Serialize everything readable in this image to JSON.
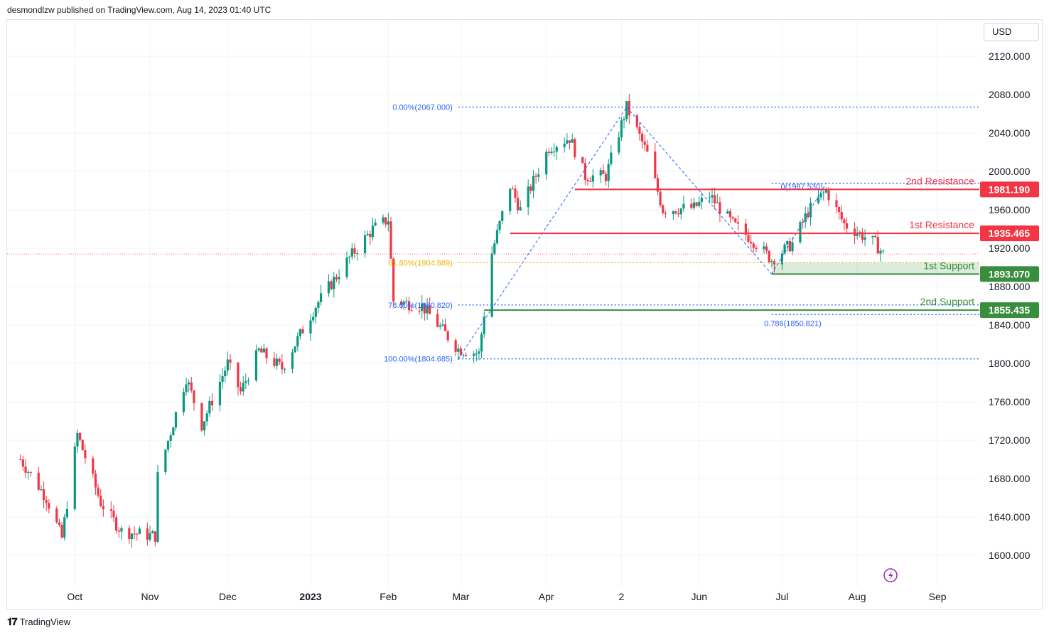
{
  "header": {
    "text": "desmondlzw published on TradingView.com, Aug 14, 2023 01:40 UTC"
  },
  "currency": "USD",
  "footer": {
    "brand": "TradingView"
  },
  "colors": {
    "up": "#089981",
    "down": "#f23645",
    "resistance": "#f23645",
    "support": "#388e3c",
    "fib": "#2962ff",
    "fib_gold": "#f0b400",
    "grid": "#f0f3fa"
  },
  "chart_data": {
    "type": "candlestick",
    "title": "",
    "ylim": [
      1584,
      2140
    ],
    "y_ticks": [
      "2120.000",
      "2080.000",
      "2040.000",
      "2000.000",
      "1960.000",
      "1920.000",
      "1880.000",
      "1840.000",
      "1800.000",
      "1760.000",
      "1720.000",
      "1680.000",
      "1640.000",
      "1600.000"
    ],
    "x_ticks": [
      {
        "label": "Oct",
        "date": "2022-10-03",
        "bold": false
      },
      {
        "label": "Nov",
        "date": "2022-11-01",
        "bold": false
      },
      {
        "label": "Dec",
        "date": "2022-12-01",
        "bold": false
      },
      {
        "label": "2023",
        "date": "2023-01-02",
        "bold": true
      },
      {
        "label": "Feb",
        "date": "2023-02-01",
        "bold": false
      },
      {
        "label": "Mar",
        "date": "2023-03-01",
        "bold": false
      },
      {
        "label": "Apr",
        "date": "2023-04-03",
        "bold": false
      },
      {
        "label": "2",
        "date": "2023-05-02",
        "bold": false
      },
      {
        "label": "Jun",
        "date": "2023-06-01",
        "bold": false
      },
      {
        "label": "Jul",
        "date": "2023-07-03",
        "bold": false
      },
      {
        "label": "Aug",
        "date": "2023-08-01",
        "bold": false
      },
      {
        "label": "Sep",
        "date": "2023-09-01",
        "bold": false
      }
    ],
    "price_path": [
      [
        "2022-09-12",
        1700
      ],
      [
        "2022-09-22",
        1660
      ],
      [
        "2022-09-28",
        1618
      ],
      [
        "2022-10-04",
        1726
      ],
      [
        "2022-10-13",
        1655
      ],
      [
        "2022-10-21",
        1625
      ],
      [
        "2022-11-03",
        1620
      ],
      [
        "2022-11-04",
        1682
      ],
      [
        "2022-11-15",
        1785
      ],
      [
        "2022-11-21",
        1736
      ],
      [
        "2022-12-01",
        1800
      ],
      [
        "2022-12-06",
        1770
      ],
      [
        "2022-12-13",
        1813
      ],
      [
        "2022-12-22",
        1795
      ],
      [
        "2023-01-04",
        1860
      ],
      [
        "2023-01-17",
        1910
      ],
      [
        "2023-01-26",
        1940
      ],
      [
        "2023-02-01",
        1950
      ],
      [
        "2023-02-03",
        1865
      ],
      [
        "2023-02-14",
        1860
      ],
      [
        "2023-02-28",
        1815
      ],
      [
        "2023-03-08",
        1810
      ],
      [
        "2023-03-13",
        1915
      ],
      [
        "2023-03-20",
        1985
      ],
      [
        "2023-03-24",
        1960
      ],
      [
        "2023-04-04",
        2025
      ],
      [
        "2023-04-12",
        2035
      ],
      [
        "2023-04-18",
        1995
      ],
      [
        "2023-04-26",
        1995
      ],
      [
        "2023-05-04",
        2067
      ],
      [
        "2023-05-12",
        2018
      ],
      [
        "2023-05-18",
        1960
      ],
      [
        "2023-05-30",
        1962
      ],
      [
        "2023-06-05",
        1975
      ],
      [
        "2023-06-14",
        1945
      ],
      [
        "2023-06-21",
        1930
      ],
      [
        "2023-06-29",
        1908
      ],
      [
        "2023-07-07",
        1925
      ],
      [
        "2023-07-13",
        1958
      ],
      [
        "2023-07-20",
        1980
      ],
      [
        "2023-07-27",
        1945
      ],
      [
        "2023-08-02",
        1935
      ],
      [
        "2023-08-08",
        1925
      ],
      [
        "2023-08-11",
        1914
      ]
    ],
    "current_price_line": 1914,
    "zigzag": [
      [
        "2023-02-28",
        1804.685
      ],
      [
        "2023-05-04",
        2067.0
      ],
      [
        "2023-06-29",
        1893.07
      ],
      [
        "2023-07-20",
        1987.53
      ]
    ],
    "fib_levels": [
      {
        "label": "0.00%(2067.000)",
        "value": 2067.0,
        "from": "2023-02-28",
        "color": "fib"
      },
      {
        "label": "61.80%(1904.889)",
        "value": 1904.889,
        "from": "2023-02-28",
        "color": "fib_gold"
      },
      {
        "label": "78.60%(1860.820)",
        "value": 1860.82,
        "from": "2023-02-28",
        "color": "fib"
      },
      {
        "label": "100.00%(1804.685)",
        "value": 1804.685,
        "from": "2023-02-28",
        "color": "fib"
      },
      {
        "label": "0(1987.530)",
        "value": 1987.53,
        "from": "2023-06-29",
        "color": "fib"
      },
      {
        "label": "0.786(1850.821)",
        "value": 1850.821,
        "from": "2023-06-29",
        "color": "fib"
      }
    ],
    "levels": [
      {
        "label": "2nd Resistance",
        "value": 1981.19,
        "price_label": "1981.190",
        "kind": "resistance",
        "from": "2023-04-14"
      },
      {
        "label": "1st Resistance",
        "value": 1935.465,
        "price_label": "1935.465",
        "kind": "resistance",
        "from": "2023-03-20"
      },
      {
        "label": "1st Support",
        "value": 1893.07,
        "price_label": "1893.070",
        "kind": "support",
        "from": "2023-06-29"
      },
      {
        "label": "2nd Support",
        "value": 1855.435,
        "price_label": "1855.435",
        "kind": "support",
        "from": "2023-03-10"
      }
    ],
    "support_zone": {
      "from": "2023-06-29",
      "top": 1904.889,
      "bottom": 1893.07
    }
  }
}
